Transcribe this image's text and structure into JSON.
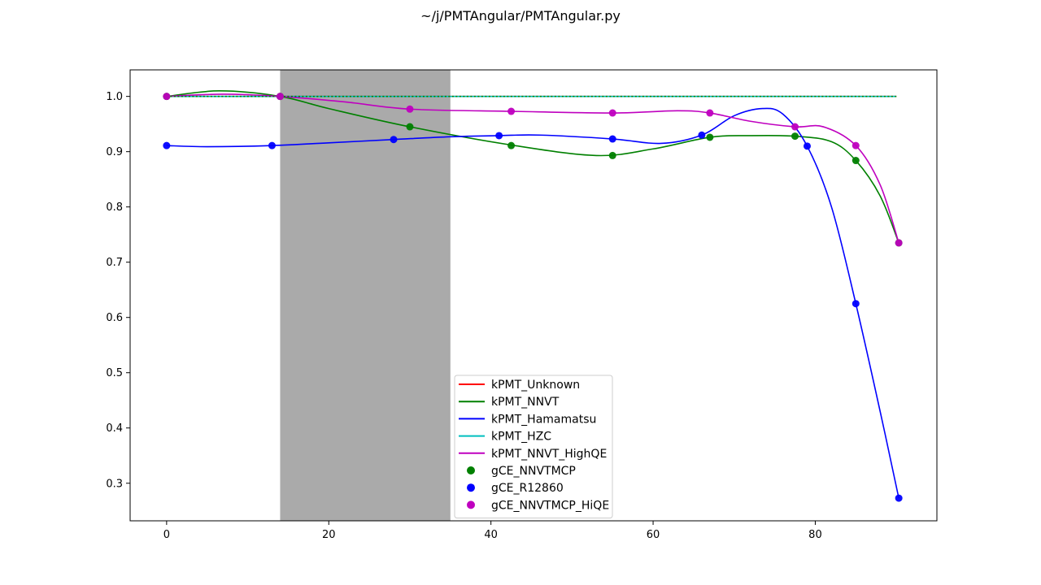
{
  "title": "~/j/PMTAngular/PMTAngular.py",
  "chart_data": {
    "type": "line",
    "xlim": [
      -4.5,
      95
    ],
    "ylim": [
      0.232,
      1.048
    ],
    "xticks": [
      0,
      20,
      40,
      60,
      80
    ],
    "yticks": [
      0.3,
      0.4,
      0.5,
      0.6,
      0.7,
      0.8,
      0.9,
      1.0
    ],
    "ytick_labels": [
      "0.3",
      "0.4",
      "0.5",
      "0.6",
      "0.7",
      "0.8",
      "0.9",
      "1.0"
    ],
    "grid": false,
    "legend_position": "lower-center",
    "shaded_region": {
      "x0": 14,
      "x1": 35,
      "color": "#aaaaaa"
    },
    "series": [
      {
        "name": "kPMT_Unknown",
        "kind": "line",
        "color": "#ff0000",
        "dashed": false,
        "x": [
          0,
          90
        ],
        "y": [
          1.0,
          1.0
        ]
      },
      {
        "name": "kPMT_NNVT",
        "kind": "line",
        "color": "#008000",
        "dashed": false,
        "x": [
          0,
          6.5,
          14,
          20,
          30,
          42.5,
          53,
          60,
          67,
          72,
          77.5,
          82,
          85,
          88,
          90.3
        ],
        "y": [
          1.0,
          1.01,
          1.0,
          0.978,
          0.945,
          0.912,
          0.893,
          0.905,
          0.926,
          0.929,
          0.928,
          0.918,
          0.884,
          0.82,
          0.735
        ]
      },
      {
        "name": "kPMT_Hamamatsu",
        "kind": "line",
        "color": "#0000ff",
        "dashed": false,
        "x": [
          0,
          5,
          13,
          20,
          28,
          35,
          41,
          46,
          55,
          61,
          66,
          70,
          73.5,
          76,
          79,
          82,
          85,
          88,
          90.3
        ],
        "y": [
          0.911,
          0.909,
          0.911,
          0.916,
          0.922,
          0.927,
          0.929,
          0.93,
          0.923,
          0.915,
          0.93,
          0.965,
          0.978,
          0.968,
          0.91,
          0.8,
          0.625,
          0.43,
          0.273
        ]
      },
      {
        "name": "kPMT_HZC",
        "kind": "line",
        "color": "#00bfbf",
        "dashed": false,
        "x": [
          0,
          90
        ],
        "y": [
          1.0,
          1.0
        ]
      },
      {
        "name": "kPMT_NNVT_HighQE",
        "kind": "line",
        "color": "#bf00bf",
        "dashed": false,
        "x": [
          0,
          7,
          14,
          22,
          30,
          42.5,
          55,
          63,
          67,
          72,
          77.5,
          81,
          85,
          88,
          90.3
        ],
        "y": [
          1.0,
          1.004,
          1.0,
          0.99,
          0.977,
          0.973,
          0.97,
          0.974,
          0.97,
          0.955,
          0.945,
          0.945,
          0.911,
          0.84,
          0.735
        ]
      },
      {
        "name": "",
        "kind": "line",
        "color": "#008000",
        "dashed": true,
        "x": [
          0,
          90
        ],
        "y": [
          1.0,
          1.0
        ]
      },
      {
        "name": "gCE_NNVTMCP",
        "kind": "scatter",
        "color": "#008000",
        "x": [
          0,
          14,
          30,
          42.5,
          55,
          67,
          77.5,
          85,
          90.3
        ],
        "y": [
          1.0,
          1.0,
          0.945,
          0.911,
          0.893,
          0.926,
          0.928,
          0.884,
          0.735
        ]
      },
      {
        "name": "gCE_R12860",
        "kind": "scatter",
        "color": "#0000ff",
        "x": [
          0,
          13,
          28,
          41,
          55,
          66,
          79,
          85,
          90.3
        ],
        "y": [
          0.911,
          0.911,
          0.922,
          0.929,
          0.923,
          0.93,
          0.91,
          0.625,
          0.273
        ]
      },
      {
        "name": "gCE_NNVTMCP_HiQE",
        "kind": "scatter",
        "color": "#bf00bf",
        "x": [
          0,
          14,
          30,
          42.5,
          55,
          67,
          77.5,
          85,
          90.3
        ],
        "y": [
          1.0,
          1.0,
          0.977,
          0.973,
          0.97,
          0.97,
          0.945,
          0.911,
          0.735
        ]
      }
    ]
  }
}
